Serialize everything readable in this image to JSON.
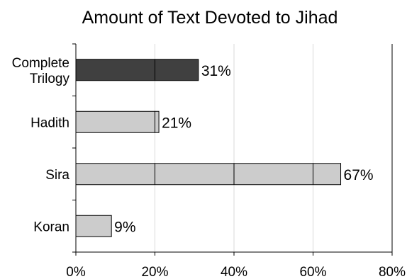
{
  "chart_data": {
    "type": "bar",
    "orientation": "horizontal",
    "title": "Amount of Text Devoted to Jihad",
    "categories": [
      [
        "Complete",
        "Trilogy"
      ],
      [
        "Hadith"
      ],
      [
        "Sira"
      ],
      [
        "Koran"
      ]
    ],
    "values": [
      31,
      21,
      67,
      9
    ],
    "data_labels": [
      "31%",
      "21%",
      "67%",
      "9%"
    ],
    "bar_colors": [
      "#404040",
      "#cccccc",
      "#cccccc",
      "#cccccc"
    ],
    "xlim": [
      0,
      80
    ],
    "xticks": [
      0,
      20,
      40,
      60,
      80
    ],
    "xtick_labels": [
      "0%",
      "20%",
      "40%",
      "60%",
      "80%"
    ],
    "xlabel": "",
    "ylabel": "",
    "grid": "vertical",
    "legend": "none"
  }
}
